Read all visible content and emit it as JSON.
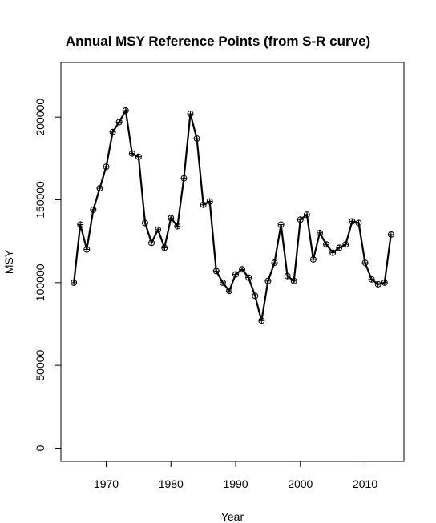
{
  "chart_data": {
    "type": "line",
    "title": "Annual MSY Reference Points (from S-R curve)",
    "xlabel": "Year",
    "ylabel": "MSY",
    "xlim": [
      1963,
      2016
    ],
    "ylim": [
      -8000,
      233000
    ],
    "xticks": [
      1970,
      1980,
      1990,
      2000,
      2010
    ],
    "yticks": [
      0,
      50000,
      100000,
      150000,
      200000
    ],
    "grid": false,
    "markers": "circle-plus",
    "series": [
      {
        "x": [
          1965,
          1966,
          1967,
          1968,
          1969,
          1970,
          1971,
          1972,
          1973,
          1974,
          1975,
          1976,
          1977,
          1978,
          1979,
          1980,
          1981,
          1982,
          1983,
          1984,
          1985,
          1986,
          1987,
          1988,
          1989,
          1990,
          1991,
          1992,
          1993,
          1994,
          1995,
          1996,
          1997,
          1998,
          1999,
          2000,
          2001,
          2002,
          2003,
          2004,
          2005,
          2006,
          2007,
          2008,
          2009,
          2010,
          2011,
          2012,
          2013,
          2014
        ],
        "values": [
          100000,
          135000,
          120000,
          144000,
          157000,
          170000,
          191000,
          197000,
          204000,
          178000,
          176000,
          136000,
          124000,
          132000,
          121000,
          139000,
          134000,
          163000,
          202000,
          187000,
          147000,
          149000,
          107000,
          100000,
          95000,
          105000,
          108000,
          103000,
          92000,
          77000,
          101000,
          112000,
          135000,
          104000,
          101000,
          138000,
          141000,
          114000,
          130000,
          123000,
          118000,
          121000,
          123000,
          137000,
          136000,
          112000,
          102000,
          99000,
          100000,
          129000
        ]
      }
    ]
  }
}
